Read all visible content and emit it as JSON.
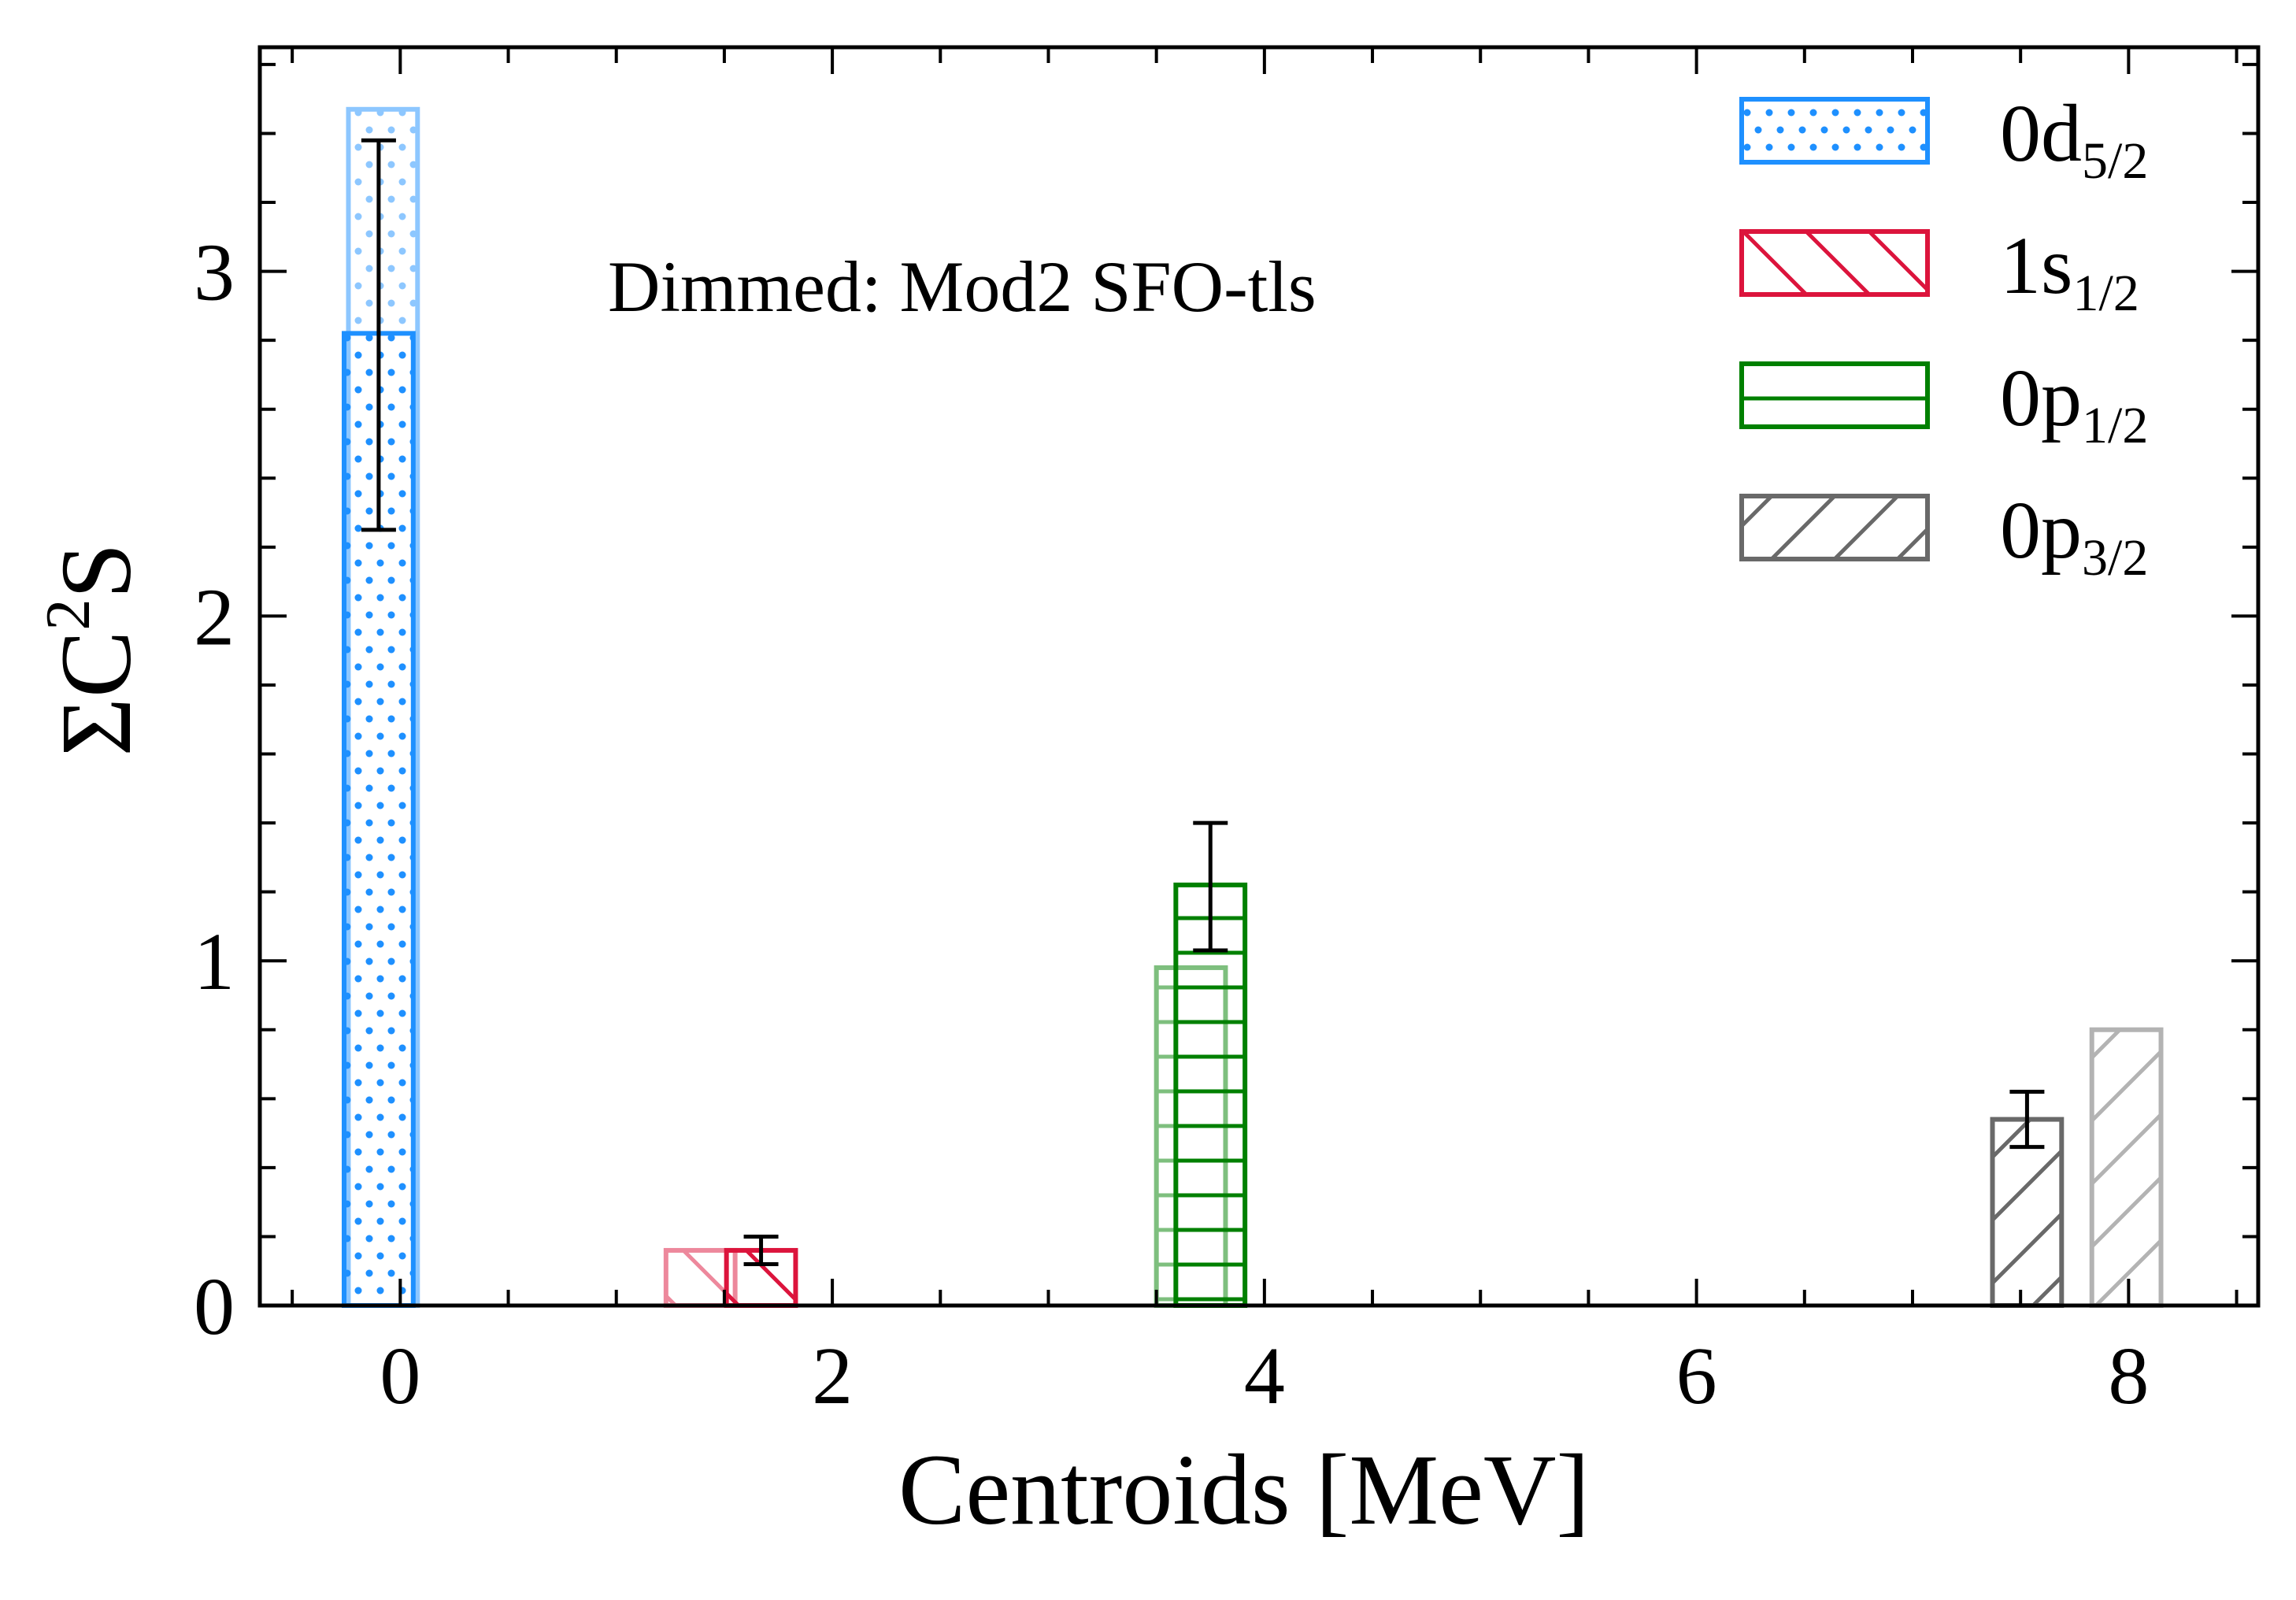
{
  "chart_data": {
    "type": "bar",
    "xlabel": "Centroids [MeV]",
    "ylabel": {
      "base": "ΣC",
      "sup": "2",
      "tail": "S"
    },
    "annotation": "Dimmed: Mod2 SFO-tls",
    "xlim": [
      -0.65,
      8.6
    ],
    "ylim": [
      0,
      3.65
    ],
    "x_ticks": [
      0,
      2,
      4,
      6,
      8
    ],
    "x_tick_labels": [
      "0",
      "2",
      "4",
      "6",
      "8"
    ],
    "y_ticks": [
      0,
      1,
      2,
      3
    ],
    "y_tick_labels": [
      "0",
      "1",
      "2",
      "3"
    ],
    "legend_position": "top-right",
    "grid": false,
    "series": [
      {
        "name": {
          "base": "0d",
          "sub": "5/2"
        },
        "color": "#1E90FF",
        "hatch": "dots",
        "experiment": {
          "x": -0.1,
          "value": 2.82,
          "error_low": 2.25,
          "error_high": 3.38,
          "error_x": -0.1
        },
        "dimmed": {
          "x": -0.08,
          "value": 3.47
        }
      },
      {
        "name": {
          "base": "1s",
          "sub": "1/2"
        },
        "color": "#DC143C",
        "hatch": "backslash",
        "experiment": {
          "x": 1.67,
          "value": 0.16,
          "error_low": 0.12,
          "error_high": 0.2,
          "error_x": 1.67
        },
        "dimmed": {
          "x": 1.39,
          "value": 0.16
        }
      },
      {
        "name": {
          "base": "0p",
          "sub": "1/2"
        },
        "color": "#008000",
        "hatch": "horizontal",
        "experiment": {
          "x": 3.75,
          "value": 1.22,
          "error_low": 1.03,
          "error_high": 1.4,
          "error_x": 3.75
        },
        "dimmed": {
          "x": 3.66,
          "value": 0.98
        }
      },
      {
        "name": {
          "base": "0p",
          "sub": "3/2"
        },
        "color": "#696969",
        "hatch": "slash",
        "experiment": {
          "x": 7.53,
          "value": 0.54,
          "error_low": 0.46,
          "error_high": 0.62,
          "error_x": 7.53
        },
        "dimmed": {
          "x": 7.99,
          "value": 0.8
        }
      }
    ]
  }
}
